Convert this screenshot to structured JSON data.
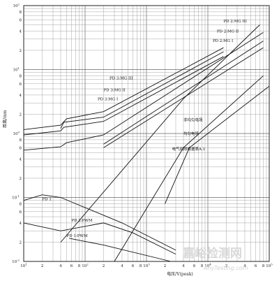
{
  "chart_data": {
    "type": "line",
    "xscale": "log",
    "yscale": "log",
    "xlim": [
      10,
      100000
    ],
    "ylim": [
      0.01,
      100
    ],
    "xlabel": "电压/V(peak)",
    "ylabel": "距离/mm",
    "grid": true,
    "x_ticks": [
      {
        "v": 10,
        "base": "10",
        "exp": "1"
      },
      {
        "v": 20,
        "base": "2"
      },
      {
        "v": 40,
        "base": "4"
      },
      {
        "v": 60,
        "base": "6"
      },
      {
        "v": 80,
        "base": "8"
      },
      {
        "v": 100,
        "base": "10",
        "exp": "2"
      },
      {
        "v": 200,
        "base": "2"
      },
      {
        "v": 400,
        "base": "4"
      },
      {
        "v": 600,
        "base": "6"
      },
      {
        "v": 800,
        "base": "8"
      },
      {
        "v": 1000,
        "base": "10",
        "exp": "3"
      },
      {
        "v": 2000,
        "base": "2"
      },
      {
        "v": 4000,
        "base": "4"
      },
      {
        "v": 6000,
        "base": "6"
      },
      {
        "v": 8000,
        "base": "8"
      },
      {
        "v": 10000,
        "base": "10",
        "exp": "4"
      },
      {
        "v": 20000,
        "base": "2"
      },
      {
        "v": 40000,
        "base": "4"
      },
      {
        "v": 60000,
        "base": "6"
      },
      {
        "v": 80000,
        "base": "8"
      },
      {
        "v": 100000,
        "base": "10",
        "exp": "5"
      }
    ],
    "y_ticks": [
      {
        "v": 0.01,
        "base": "10",
        "exp": "-2"
      },
      {
        "v": 0.02,
        "base": "2"
      },
      {
        "v": 0.04,
        "base": "4"
      },
      {
        "v": 0.06,
        "base": "6"
      },
      {
        "v": 0.08,
        "base": "8"
      },
      {
        "v": 0.1,
        "base": "10",
        "exp": "-1"
      },
      {
        "v": 0.2,
        "base": "2"
      },
      {
        "v": 0.4,
        "base": "4"
      },
      {
        "v": 0.6,
        "base": "6"
      },
      {
        "v": 0.8,
        "base": "8"
      },
      {
        "v": 1,
        "base": "10",
        "exp": "0"
      },
      {
        "v": 2,
        "base": "2"
      },
      {
        "v": 4,
        "base": "4"
      },
      {
        "v": 6,
        "base": "6"
      },
      {
        "v": 8,
        "base": "8"
      },
      {
        "v": 10,
        "base": "10",
        "exp": "1"
      },
      {
        "v": 20,
        "base": "2"
      },
      {
        "v": 40,
        "base": "4"
      },
      {
        "v": 60,
        "base": "6"
      },
      {
        "v": 80,
        "base": "8"
      },
      {
        "v": 100,
        "base": "10",
        "exp": "2"
      }
    ],
    "series": [
      {
        "name": "PD 3:MG III",
        "points": [
          [
            10,
            1.15
          ],
          [
            40,
            1.35
          ],
          [
            50,
            1.7
          ],
          [
            200,
            2.2
          ],
          [
            18000,
            22
          ]
        ]
      },
      {
        "name": "PD 3:MG II",
        "points": [
          [
            40,
            1.2
          ],
          [
            45,
            1.5
          ],
          [
            200,
            1.8
          ],
          [
            18000,
            19
          ]
        ]
      },
      {
        "name": "PD 3:MG I",
        "points": [
          [
            10,
            0.95
          ],
          [
            40,
            1.1
          ],
          [
            45,
            1.25
          ],
          [
            200,
            1.55
          ],
          [
            18000,
            16
          ]
        ]
      },
      {
        "name": "PD 2:MG III",
        "points": [
          [
            10,
            0.55
          ],
          [
            40,
            0.62
          ],
          [
            50,
            0.72
          ],
          [
            200,
            0.95
          ],
          [
            80000,
            38
          ]
        ]
      },
      {
        "name": "PD 2:MG II",
        "points": [
          [
            200,
            0.68
          ],
          [
            80000,
            28
          ]
        ]
      },
      {
        "name": "PD 2:MG I",
        "points": [
          [
            200,
            0.6
          ],
          [
            80000,
            22
          ]
        ]
      },
      {
        "name": "非均匀电场",
        "points": [
          [
            40,
            0.02
          ],
          [
            4000,
            3.5
          ],
          [
            70000,
            50
          ]
        ]
      },
      {
        "name": "均匀电场",
        "points": [
          [
            300,
            0.01
          ],
          [
            4000,
            0.6
          ],
          [
            80000,
            8
          ]
        ]
      },
      {
        "name": "PD 1",
        "points": [
          [
            10,
            0.09
          ],
          [
            20,
            0.11
          ],
          [
            40,
            0.1
          ],
          [
            400,
            0.04
          ],
          [
            3000,
            0.015
          ]
        ]
      },
      {
        "name": "PD 2:PWM",
        "points": [
          [
            10,
            0.04
          ],
          [
            40,
            0.03
          ],
          [
            200,
            0.04
          ],
          [
            600,
            0.028
          ],
          [
            3000,
            0.013
          ]
        ]
      },
      {
        "name": "PD 1:PWM",
        "points": [
          [
            55,
            0.023
          ],
          [
            200,
            0.018
          ],
          [
            2500,
            0.01
          ]
        ]
      },
      {
        "name": "电气间隙根据表A.1",
        "points": [
          [
            2000,
            0.08
          ],
          [
            5000,
            0.6
          ],
          [
            100000,
            5.5
          ]
        ]
      }
    ],
    "annotations": [
      {
        "label": "PD 2:MG III",
        "x": 18000,
        "y": 55
      },
      {
        "label": "PD 2:MG II",
        "x": 14000,
        "y": 38
      },
      {
        "label": "PD 2:MG I",
        "x": 12000,
        "y": 27
      },
      {
        "label": "PD 3:MG III",
        "x": 250,
        "y": 7
      },
      {
        "label": "PD 3:MG II",
        "x": 200,
        "y": 4.6
      },
      {
        "label": "PD 3:MG I",
        "x": 160,
        "y": 3.3
      },
      {
        "label": "非均匀电场",
        "x": 4000,
        "y": 1.55
      },
      {
        "label": "均匀电场",
        "x": 4000,
        "y": 0.95
      },
      {
        "label": "电气间隙根据表A.1",
        "x": 2600,
        "y": 0.55
      },
      {
        "label": "PD 1",
        "x": 20,
        "y": 0.09
      },
      {
        "label": "PD 2:PWM",
        "x": 60,
        "y": 0.042
      },
      {
        "label": "PD 1:PWM",
        "x": 50,
        "y": 0.024
      }
    ]
  },
  "watermark": {
    "name": "嘉峪检测网",
    "url": "AnyTesting.com"
  }
}
